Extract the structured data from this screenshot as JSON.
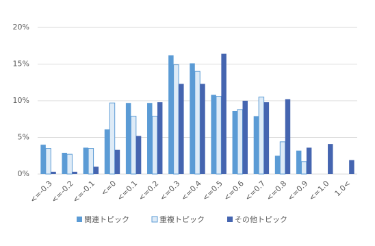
{
  "chart_data": {
    "type": "bar",
    "categories": [
      "<=-0.3",
      "<=-0.2",
      "<=-0.1",
      "<=0",
      "<=0.1",
      "<=0.2",
      "<=0.3",
      "<=0.4",
      "<=0.5",
      "<=0.6",
      "<=0.7",
      "<=0.8",
      "<=0.9",
      "<=1.0",
      "1.0<"
    ],
    "series": [
      {
        "name": "関連トピック",
        "color": "#5b9bd5",
        "values": [
          4.0,
          2.9,
          3.6,
          6.1,
          9.7,
          9.7,
          16.2,
          15.1,
          10.8,
          8.6,
          7.9,
          2.5,
          3.2,
          0,
          0
        ]
      },
      {
        "name": "重複トピック",
        "color": "#deebf7",
        "values": [
          3.5,
          2.7,
          3.5,
          9.7,
          7.9,
          7.9,
          14.9,
          14.0,
          10.6,
          8.8,
          10.5,
          4.4,
          1.7,
          0,
          0
        ]
      },
      {
        "name": "その他トピック",
        "color": "#4565b0",
        "values": [
          0.3,
          0.3,
          1.0,
          3.3,
          5.2,
          9.8,
          12.3,
          12.3,
          16.4,
          10.0,
          9.8,
          10.2,
          3.6,
          4.1,
          1.9
        ]
      }
    ],
    "ylim": [
      0,
      20
    ],
    "yticks": [
      {
        "value": 0,
        "label": "0%"
      },
      {
        "value": 5,
        "label": "5%"
      },
      {
        "value": 10,
        "label": "10%"
      },
      {
        "value": 15,
        "label": "15%"
      },
      {
        "value": 20,
        "label": "20%"
      }
    ],
    "grid": true,
    "legend": "bottom"
  }
}
